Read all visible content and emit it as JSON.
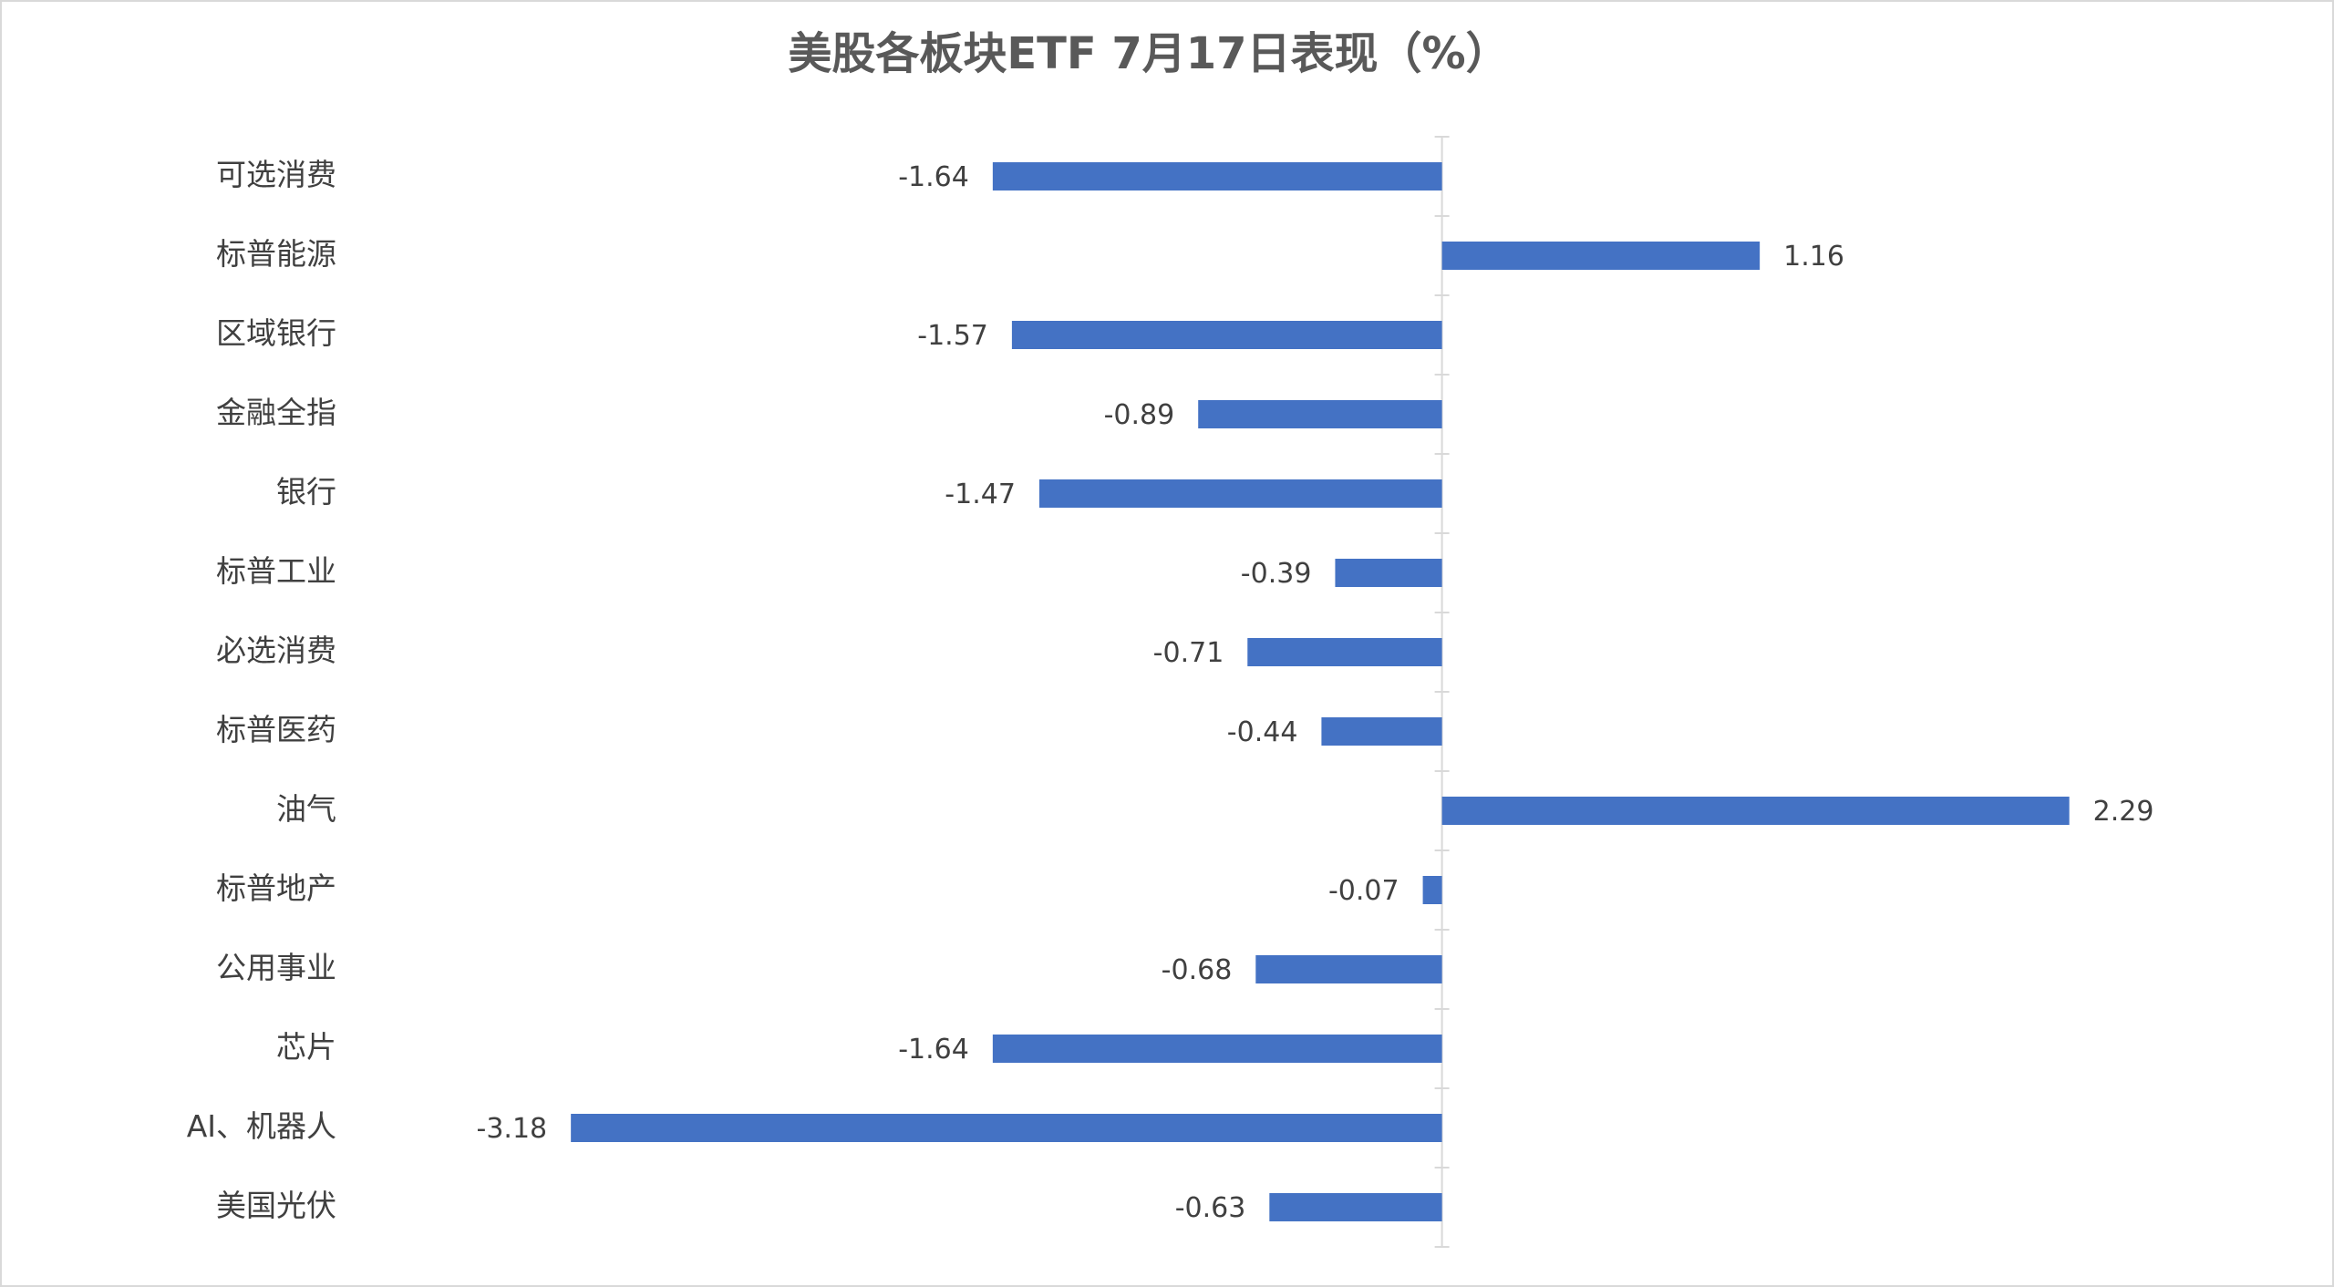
{
  "chart_data": {
    "type": "bar",
    "orientation": "horizontal",
    "title": "美股各板块ETF  7月17日表现（%）",
    "categories": [
      "可选消费",
      "标普能源",
      "区域银行",
      "金融全指",
      "银行",
      "标普工业",
      "必选消费",
      "标普医药",
      "油气",
      "标普地产",
      "公用事业",
      "芯片",
      "AI、机器人",
      "美国光伏"
    ],
    "values": [
      -1.64,
      1.16,
      -1.57,
      -0.89,
      -1.47,
      -0.39,
      -0.71,
      -0.44,
      2.29,
      -0.07,
      -0.68,
      -1.64,
      -3.18,
      -0.63
    ],
    "color": "#4472c4",
    "xlim": [
      -3.5,
      3
    ],
    "grid": false
  }
}
